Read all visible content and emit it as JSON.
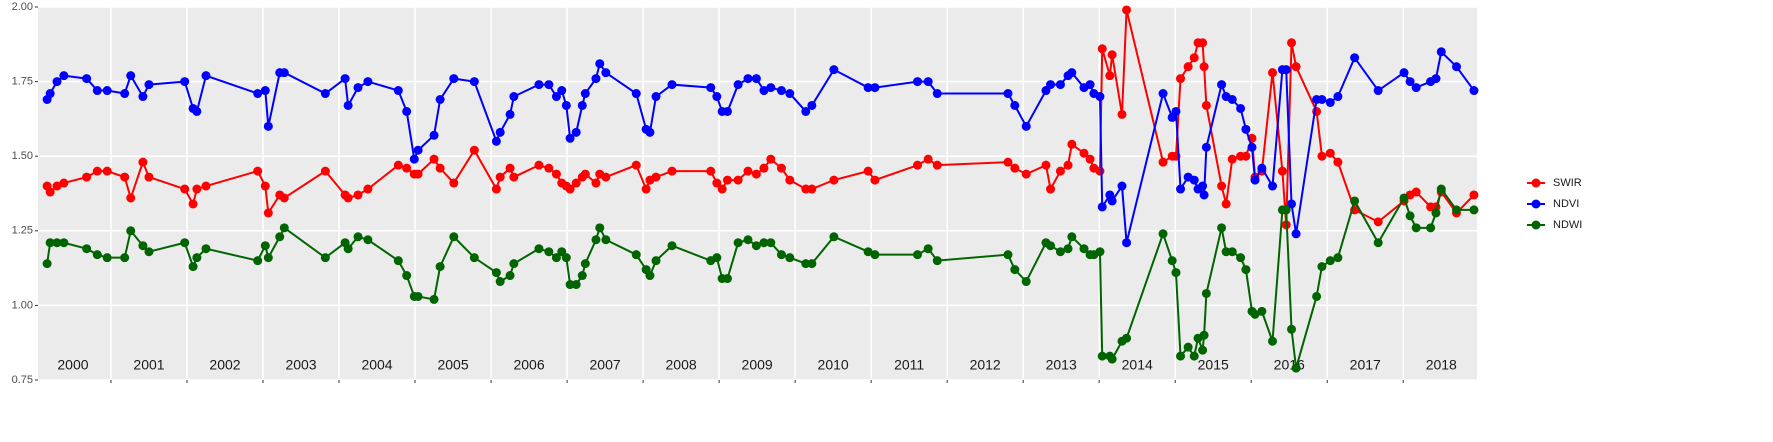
{
  "chart_data": {
    "type": "line",
    "x": [
      2000.16,
      2000.2,
      2000.29,
      2000.38,
      2000.68,
      2000.82,
      2000.95,
      2001.18,
      2001.26,
      2001.42,
      2001.5,
      2001.97,
      2002.08,
      2002.13,
      2002.25,
      2002.93,
      2003.03,
      2003.07,
      2003.22,
      2003.28,
      2003.82,
      2004.08,
      2004.12,
      2004.25,
      2004.38,
      2004.78,
      2004.89,
      2004.99,
      2005.04,
      2005.25,
      2005.33,
      2005.51,
      2005.78,
      2006.07,
      2006.12,
      2006.25,
      2006.3,
      2006.63,
      2006.76,
      2006.86,
      2006.93,
      2006.99,
      2007.04,
      2007.12,
      2007.2,
      2007.24,
      2007.38,
      2007.43,
      2007.51,
      2007.91,
      2008.04,
      2008.09,
      2008.17,
      2008.38,
      2008.89,
      2008.97,
      2009.04,
      2009.11,
      2009.25,
      2009.38,
      2009.49,
      2009.59,
      2009.68,
      2009.82,
      2009.93,
      2010.14,
      2010.22,
      2010.51,
      2010.96,
      2011.05,
      2011.61,
      2011.75,
      2011.87,
      2012.8,
      2012.89,
      2013.04,
      2013.3,
      2013.36,
      2013.49,
      2013.59,
      2013.64,
      2013.8,
      2013.88,
      2013.93,
      2014.01,
      2014.04,
      2014.14,
      2014.17,
      2014.3,
      2014.36,
      2014.84,
      2014.96,
      2015.01,
      2015.07,
      2015.17,
      2015.25,
      2015.3,
      2015.36,
      2015.38,
      2015.41,
      2015.61,
      2015.67,
      2015.75,
      2015.86,
      2015.93,
      2016.01,
      2016.05,
      2016.14,
      2016.28,
      2016.41,
      2016.46,
      2016.53,
      2016.59,
      2016.86,
      2016.93,
      2017.04,
      2017.14,
      2017.36,
      2017.67,
      2018.01,
      2018.09,
      2018.17,
      2018.36,
      2018.43,
      2018.5,
      2018.7,
      2018.93
    ],
    "series": [
      {
        "name": "SWIR",
        "color": "#ff0000",
        "values": [
          1.4,
          1.38,
          1.4,
          1.41,
          1.43,
          1.45,
          1.45,
          1.43,
          1.36,
          1.48,
          1.43,
          1.39,
          1.34,
          1.39,
          1.4,
          1.45,
          1.4,
          1.31,
          1.37,
          1.36,
          1.45,
          1.37,
          1.36,
          1.37,
          1.39,
          1.47,
          1.46,
          1.44,
          1.44,
          1.49,
          1.46,
          1.41,
          1.52,
          1.39,
          1.43,
          1.46,
          1.43,
          1.47,
          1.46,
          1.44,
          1.41,
          1.4,
          1.39,
          1.41,
          1.43,
          1.44,
          1.41,
          1.44,
          1.43,
          1.47,
          1.39,
          1.42,
          1.43,
          1.45,
          1.45,
          1.41,
          1.39,
          1.42,
          1.42,
          1.45,
          1.44,
          1.46,
          1.49,
          1.46,
          1.42,
          1.39,
          1.39,
          1.42,
          1.45,
          1.42,
          1.47,
          1.49,
          1.47,
          1.48,
          1.46,
          1.44,
          1.47,
          1.39,
          1.45,
          1.47,
          1.54,
          1.51,
          1.49,
          1.46,
          1.45,
          1.86,
          1.77,
          1.84,
          1.64,
          1.99,
          1.48,
          1.5,
          1.5,
          1.76,
          1.8,
          1.83,
          1.88,
          1.88,
          1.8,
          1.67,
          1.4,
          1.34,
          1.49,
          1.5,
          1.5,
          1.56,
          1.43,
          1.45,
          1.78,
          1.45,
          1.27,
          1.88,
          1.8,
          1.65,
          1.5,
          1.51,
          1.48,
          1.32,
          1.28,
          1.35,
          1.37,
          1.38,
          1.33,
          1.33,
          1.38,
          1.31,
          1.37
        ]
      },
      {
        "name": "NDVI",
        "color": "#0000ff",
        "values": [
          1.69,
          1.71,
          1.75,
          1.77,
          1.76,
          1.72,
          1.72,
          1.71,
          1.77,
          1.7,
          1.74,
          1.75,
          1.66,
          1.65,
          1.77,
          1.71,
          1.72,
          1.6,
          1.78,
          1.78,
          1.71,
          1.76,
          1.67,
          1.73,
          1.75,
          1.72,
          1.65,
          1.49,
          1.52,
          1.57,
          1.69,
          1.76,
          1.75,
          1.55,
          1.58,
          1.64,
          1.7,
          1.74,
          1.74,
          1.7,
          1.72,
          1.67,
          1.56,
          1.58,
          1.67,
          1.71,
          1.76,
          1.81,
          1.78,
          1.71,
          1.59,
          1.58,
          1.7,
          1.74,
          1.73,
          1.7,
          1.65,
          1.65,
          1.74,
          1.76,
          1.76,
          1.72,
          1.73,
          1.72,
          1.71,
          1.65,
          1.67,
          1.79,
          1.73,
          1.73,
          1.75,
          1.75,
          1.71,
          1.71,
          1.67,
          1.6,
          1.72,
          1.74,
          1.74,
          1.77,
          1.78,
          1.73,
          1.74,
          1.71,
          1.7,
          1.33,
          1.37,
          1.35,
          1.4,
          1.21,
          1.71,
          1.63,
          1.65,
          1.39,
          1.43,
          1.42,
          1.39,
          1.4,
          1.37,
          1.53,
          1.74,
          1.7,
          1.69,
          1.66,
          1.59,
          1.53,
          1.42,
          1.46,
          1.4,
          1.79,
          1.79,
          1.34,
          1.24,
          1.69,
          1.69,
          1.68,
          1.7,
          1.83,
          1.72,
          1.78,
          1.75,
          1.73,
          1.75,
          1.76,
          1.85,
          1.8,
          1.72
        ]
      },
      {
        "name": "NDWI",
        "color": "#006400",
        "values": [
          1.14,
          1.21,
          1.21,
          1.21,
          1.19,
          1.17,
          1.16,
          1.16,
          1.25,
          1.2,
          1.18,
          1.21,
          1.13,
          1.16,
          1.19,
          1.15,
          1.2,
          1.16,
          1.23,
          1.26,
          1.16,
          1.21,
          1.19,
          1.23,
          1.22,
          1.15,
          1.1,
          1.03,
          1.03,
          1.02,
          1.13,
          1.23,
          1.16,
          1.11,
          1.08,
          1.1,
          1.14,
          1.19,
          1.18,
          1.16,
          1.18,
          1.16,
          1.07,
          1.07,
          1.1,
          1.14,
          1.22,
          1.26,
          1.22,
          1.17,
          1.12,
          1.1,
          1.15,
          1.2,
          1.15,
          1.16,
          1.09,
          1.09,
          1.21,
          1.22,
          1.2,
          1.21,
          1.21,
          1.17,
          1.16,
          1.14,
          1.14,
          1.23,
          1.18,
          1.17,
          1.17,
          1.19,
          1.15,
          1.17,
          1.12,
          1.08,
          1.21,
          1.2,
          1.18,
          1.19,
          1.23,
          1.19,
          1.17,
          1.17,
          1.18,
          0.83,
          0.83,
          0.82,
          0.88,
          0.89,
          1.24,
          1.15,
          1.11,
          0.83,
          0.86,
          0.83,
          0.89,
          0.85,
          0.9,
          1.04,
          1.26,
          1.18,
          1.18,
          1.16,
          1.12,
          0.98,
          0.97,
          0.98,
          0.88,
          1.32,
          1.32,
          0.92,
          0.79,
          1.03,
          1.13,
          1.15,
          1.16,
          1.35,
          1.21,
          1.36,
          1.3,
          1.26,
          1.26,
          1.31,
          1.39,
          1.32,
          1.32
        ]
      }
    ],
    "xlim": [
      2000.04,
      2018.97
    ],
    "xticks": [
      {
        "value": 2000.5,
        "label": "2000"
      },
      {
        "value": 2001.5,
        "label": "2001"
      },
      {
        "value": 2002.5,
        "label": "2002"
      },
      {
        "value": 2003.5,
        "label": "2003"
      },
      {
        "value": 2004.5,
        "label": "2004"
      },
      {
        "value": 2005.5,
        "label": "2005"
      },
      {
        "value": 2006.5,
        "label": "2006"
      },
      {
        "value": 2007.5,
        "label": "2007"
      },
      {
        "value": 2008.5,
        "label": "2008"
      },
      {
        "value": 2009.5,
        "label": "2009"
      },
      {
        "value": 2010.5,
        "label": "2010"
      },
      {
        "value": 2011.5,
        "label": "2011"
      },
      {
        "value": 2012.5,
        "label": "2012"
      },
      {
        "value": 2013.5,
        "label": "2013"
      },
      {
        "value": 2014.5,
        "label": "2014"
      },
      {
        "value": 2015.5,
        "label": "2015"
      },
      {
        "value": 2016.5,
        "label": "2016"
      },
      {
        "value": 2017.5,
        "label": "2017"
      },
      {
        "value": 2018.5,
        "label": "2018"
      }
    ],
    "xgrid": [
      2001,
      2002,
      2003,
      2004,
      2005,
      2006,
      2007,
      2008,
      2009,
      2010,
      2011,
      2012,
      2013,
      2014,
      2015,
      2016,
      2017,
      2018
    ],
    "ylim": [
      0.75,
      2.0
    ],
    "yticks": [
      {
        "value": 0.75,
        "label": "0.75"
      },
      {
        "value": 1.0,
        "label": "1.00"
      },
      {
        "value": 1.25,
        "label": "1.25"
      },
      {
        "value": 1.5,
        "label": "1.50"
      },
      {
        "value": 1.75,
        "label": "1.75"
      },
      {
        "value": 2.0,
        "label": "2.00"
      }
    ],
    "grid": true,
    "legend": "right"
  }
}
